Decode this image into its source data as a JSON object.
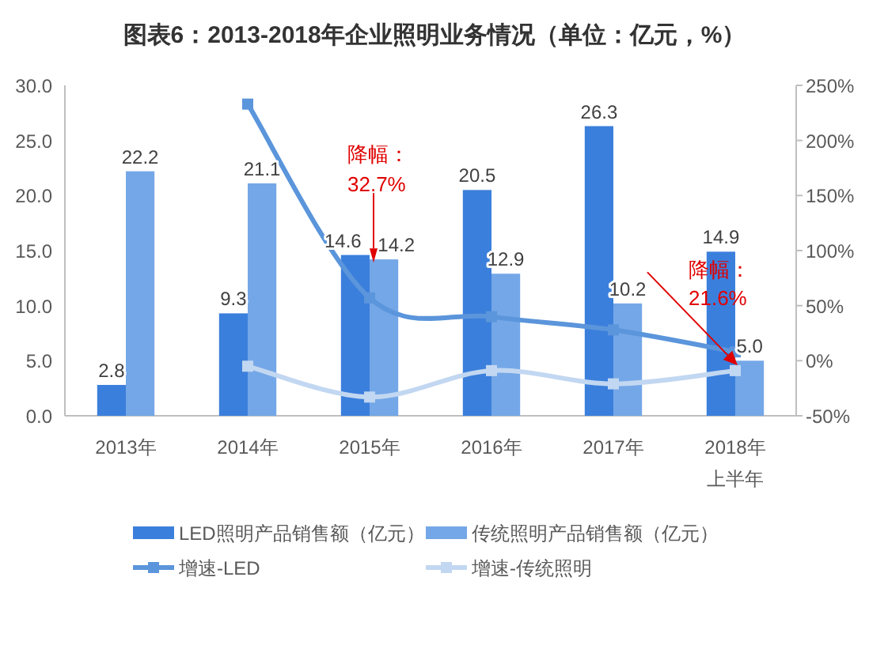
{
  "chart_data": {
    "type": "bar",
    "title": "图表6：2013-2018年企业照明业务情况（单位：亿元，%）",
    "categories": [
      "2013年",
      "2014年",
      "2015年",
      "2016年",
      "2017年",
      "2018年上半年"
    ],
    "series": [
      {
        "name": "LED照明产品销售额（亿元）",
        "color": "#3b7fdc",
        "values": [
          2.8,
          9.3,
          14.6,
          20.5,
          26.3,
          14.9
        ],
        "value_labels": [
          "2.8",
          "9.3",
          "14.6",
          "20.5",
          "26.3",
          "14.9"
        ]
      },
      {
        "name": "传统照明产品销售额（亿元）",
        "color": "#74a7e7",
        "values": [
          22.2,
          21.1,
          14.2,
          12.9,
          10.2,
          5.0
        ],
        "value_labels": [
          "22.2",
          "21.1",
          "14.2",
          "12.9",
          "10.2",
          "5.0"
        ]
      },
      {
        "name": "增速-LED",
        "type": "line",
        "axis": "y2",
        "color": "#5b95db",
        "values": [
          null,
          233,
          57,
          40,
          28,
          8
        ]
      },
      {
        "name": "增速-传统照明",
        "type": "line",
        "axis": "y2",
        "color": "#c2d7f1",
        "values": [
          null,
          -5,
          -33,
          -9,
          -21,
          -9
        ]
      }
    ],
    "ylim": [
      0,
      30
    ],
    "yticks": [
      {
        "value": 0,
        "label": "0.0"
      },
      {
        "value": 5,
        "label": "5.0"
      },
      {
        "value": 10,
        "label": "10.0"
      },
      {
        "value": 15,
        "label": "15.0"
      },
      {
        "value": 20,
        "label": "20.0"
      },
      {
        "value": 25,
        "label": "25.0"
      },
      {
        "value": 30,
        "label": "30.0"
      }
    ],
    "y2lim": [
      -50,
      250
    ],
    "y2ticks": [
      {
        "value": -50,
        "label": "-50%"
      },
      {
        "value": 0,
        "label": "0%"
      },
      {
        "value": 50,
        "label": "50%"
      },
      {
        "value": 100,
        "label": "100%"
      },
      {
        "value": 150,
        "label": "150%"
      },
      {
        "value": 200,
        "label": "200%"
      },
      {
        "value": 250,
        "label": "250%"
      }
    ],
    "marker": "square",
    "legend": "bottom",
    "annotations": [
      {
        "text": "降幅：\n32.7%",
        "x": "2015年",
        "y": 14.2
      },
      {
        "text": "降幅：\n21.6%",
        "x": "2018年上半年",
        "y": 5.0
      }
    ]
  }
}
